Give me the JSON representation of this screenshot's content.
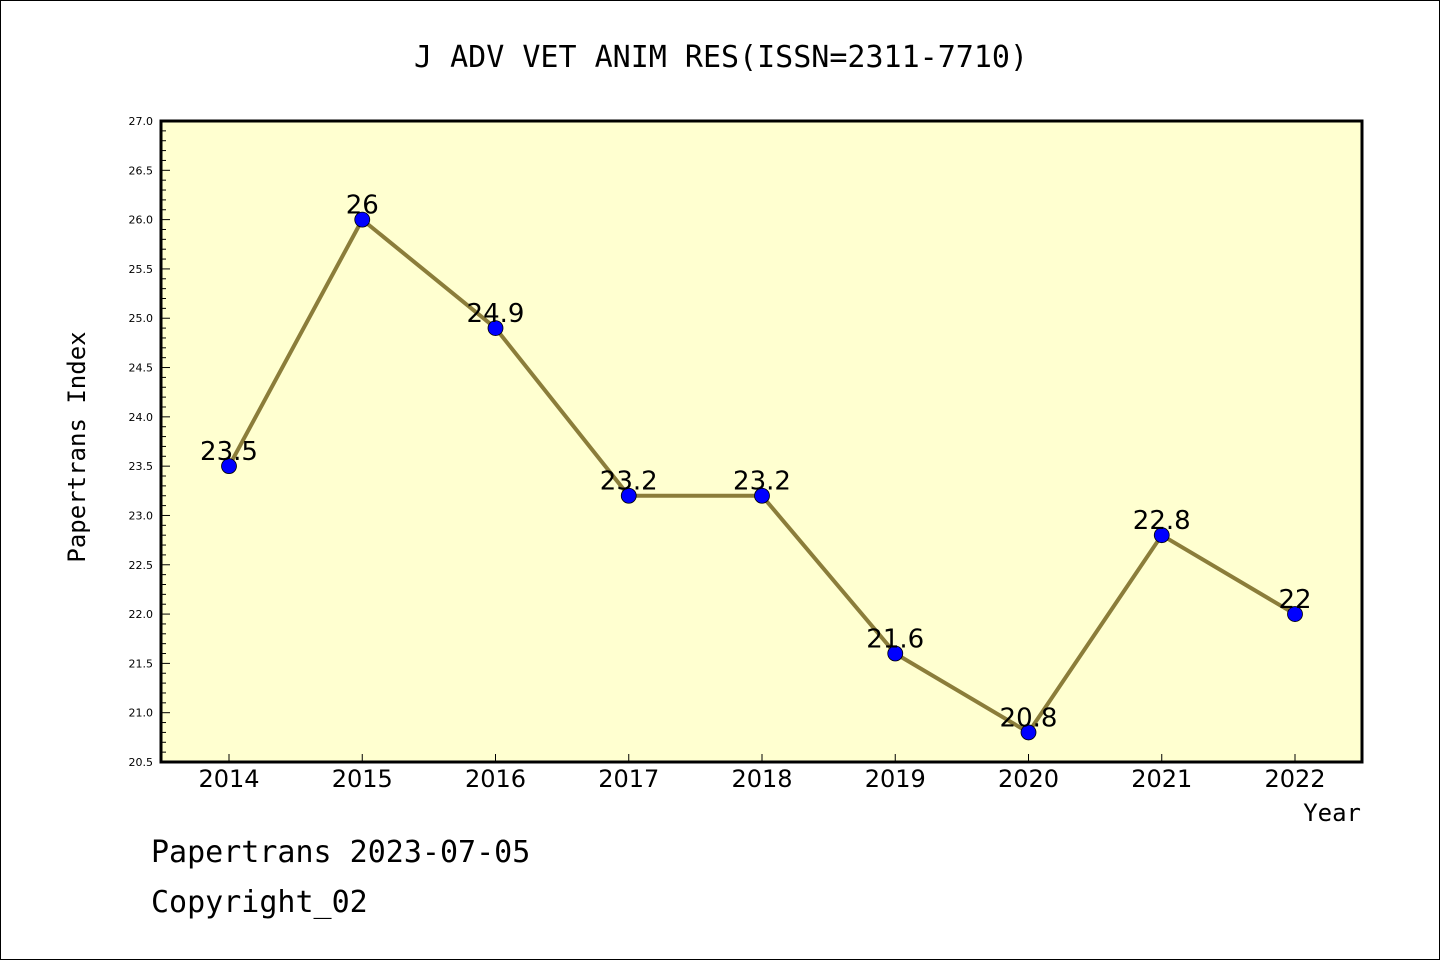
{
  "chart_data": {
    "type": "line",
    "title": "J ADV VET ANIM RES(ISSN=2311-7710)",
    "xlabel": "Year",
    "ylabel": "Papertrans Index",
    "categories": [
      "2014",
      "2015",
      "2016",
      "2017",
      "2018",
      "2019",
      "2020",
      "2021",
      "2022"
    ],
    "series": [
      {
        "values": [
          23.5,
          26,
          24.9,
          23.2,
          23.2,
          21.6,
          20.8,
          22.8,
          22
        ],
        "data_labels": [
          "23.5",
          "26",
          "24.9",
          "23.2",
          "23.2",
          "21.6",
          "20.8",
          "22.8",
          "22"
        ]
      }
    ],
    "ylim": [
      20.5,
      27.0
    ],
    "yticks": [
      "20.5",
      "21.0",
      "21.5",
      "22.0",
      "22.5",
      "23.0",
      "23.5",
      "24.0",
      "24.5",
      "25.0",
      "25.5",
      "26.0",
      "26.5",
      "27.0"
    ],
    "grid": false,
    "colors": {
      "plot_background": "#ffffd0",
      "line": "#8b7d3a",
      "marker": "#0000ff"
    }
  },
  "footer": {
    "line1": "Papertrans 2023-07-05",
    "line2": "Copyright_02"
  }
}
